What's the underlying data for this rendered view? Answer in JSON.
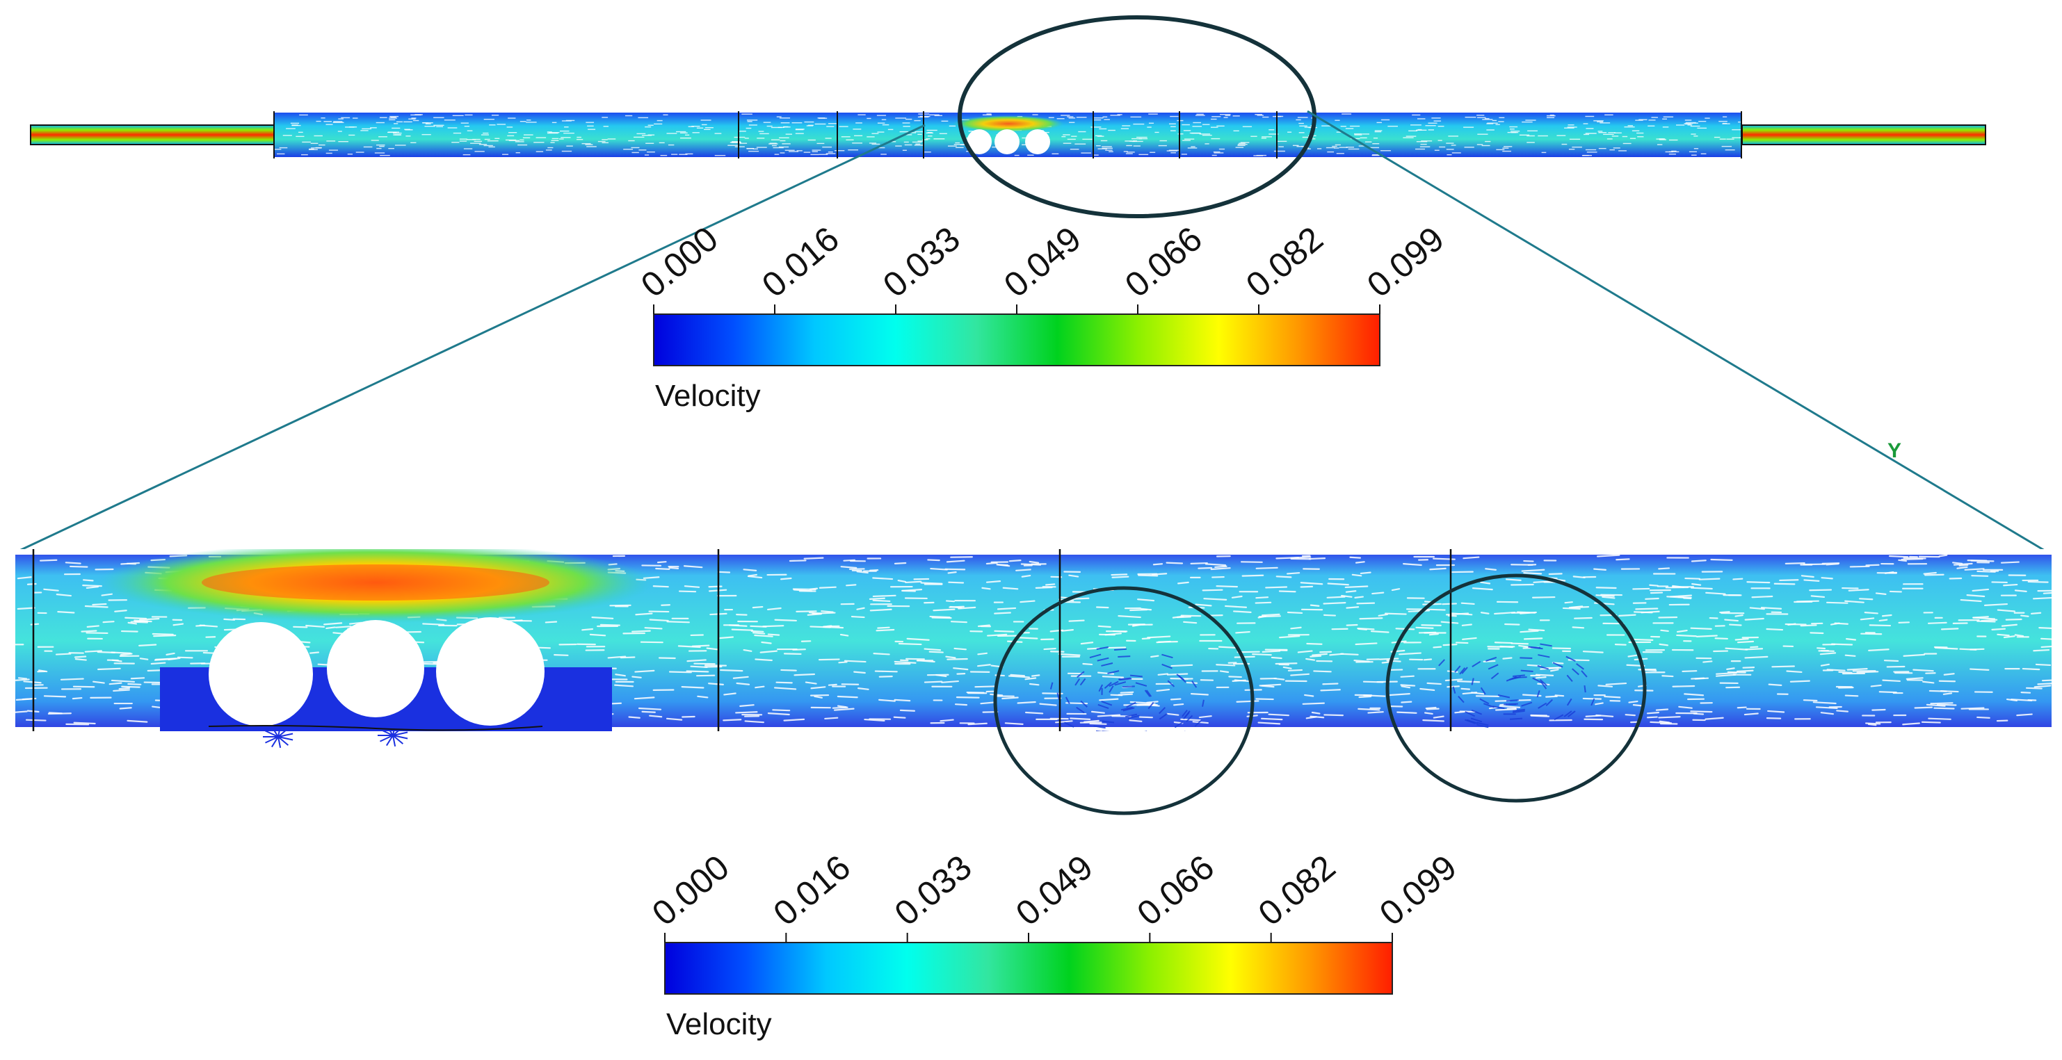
{
  "colorbar": {
    "title": "Velocity",
    "ticks": [
      "0.000",
      "0.016",
      "0.033",
      "0.049",
      "0.066",
      "0.082",
      "0.099"
    ],
    "min": 0.0,
    "max": 0.099,
    "colormap": [
      "#0000dd",
      "#0050ff",
      "#00c8ff",
      "#00ffee",
      "#32e6a0",
      "#00d21e",
      "#8cf000",
      "#ffff00",
      "#ff9600",
      "#ff1e00"
    ]
  },
  "axis_indicator": {
    "label": "Y",
    "color": "#1a9a3a"
  },
  "annotation": {
    "outline_color": "#14323a",
    "leader_color": "#1f7a8c"
  },
  "flow": {
    "inlet_color": "#e02010",
    "wall_color": "#111111",
    "obstacles": 3,
    "highlighted_vortices": 2
  }
}
